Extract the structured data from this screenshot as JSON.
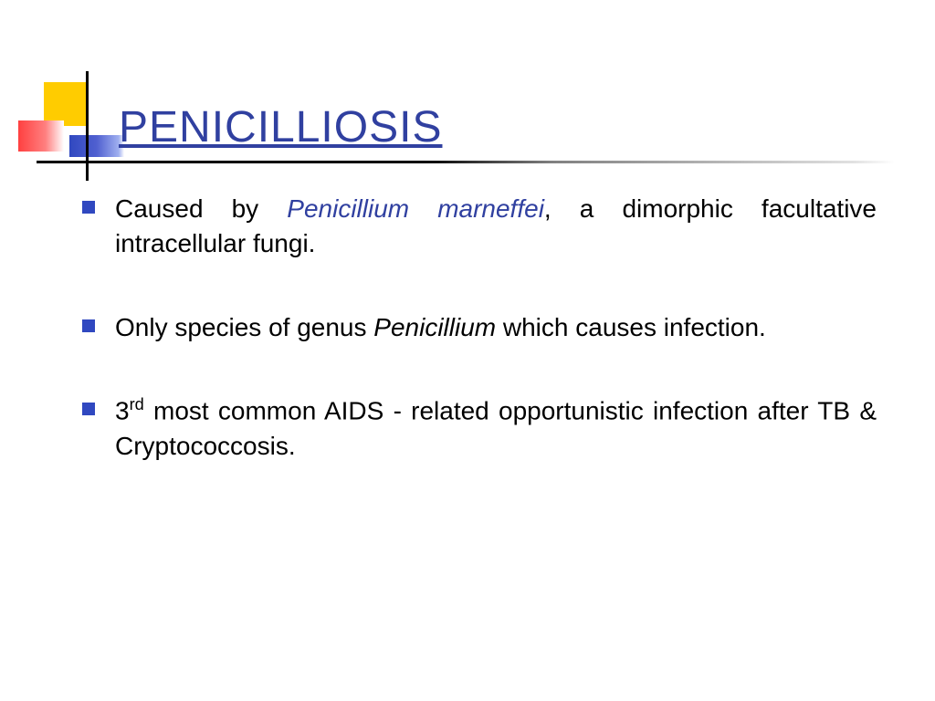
{
  "slide": {
    "title": "PENICILLIOSIS",
    "title_color": "#3040a0",
    "title_fontsize": 48,
    "body_fontsize": 28,
    "body_color": "#000000",
    "bullet_color": "#3048c0",
    "background_color": "#ffffff",
    "decoration": {
      "yellow": "#ffcc00",
      "red": "#ff4040",
      "blue": "#3048c0",
      "line": "#000000"
    },
    "bullets": [
      {
        "pre": "Caused by ",
        "em_blue": "Penicillium marneffei",
        "post": ", a dimorphic   facultative intracellular fungi."
      },
      {
        "pre": "Only species of genus ",
        "em": "Penicillium",
        "post": " which causes infection."
      },
      {
        "num": "3",
        "sup": "rd",
        "post": " most common AIDS - related opportunistic infection after TB & Cryptococcosis."
      }
    ]
  }
}
